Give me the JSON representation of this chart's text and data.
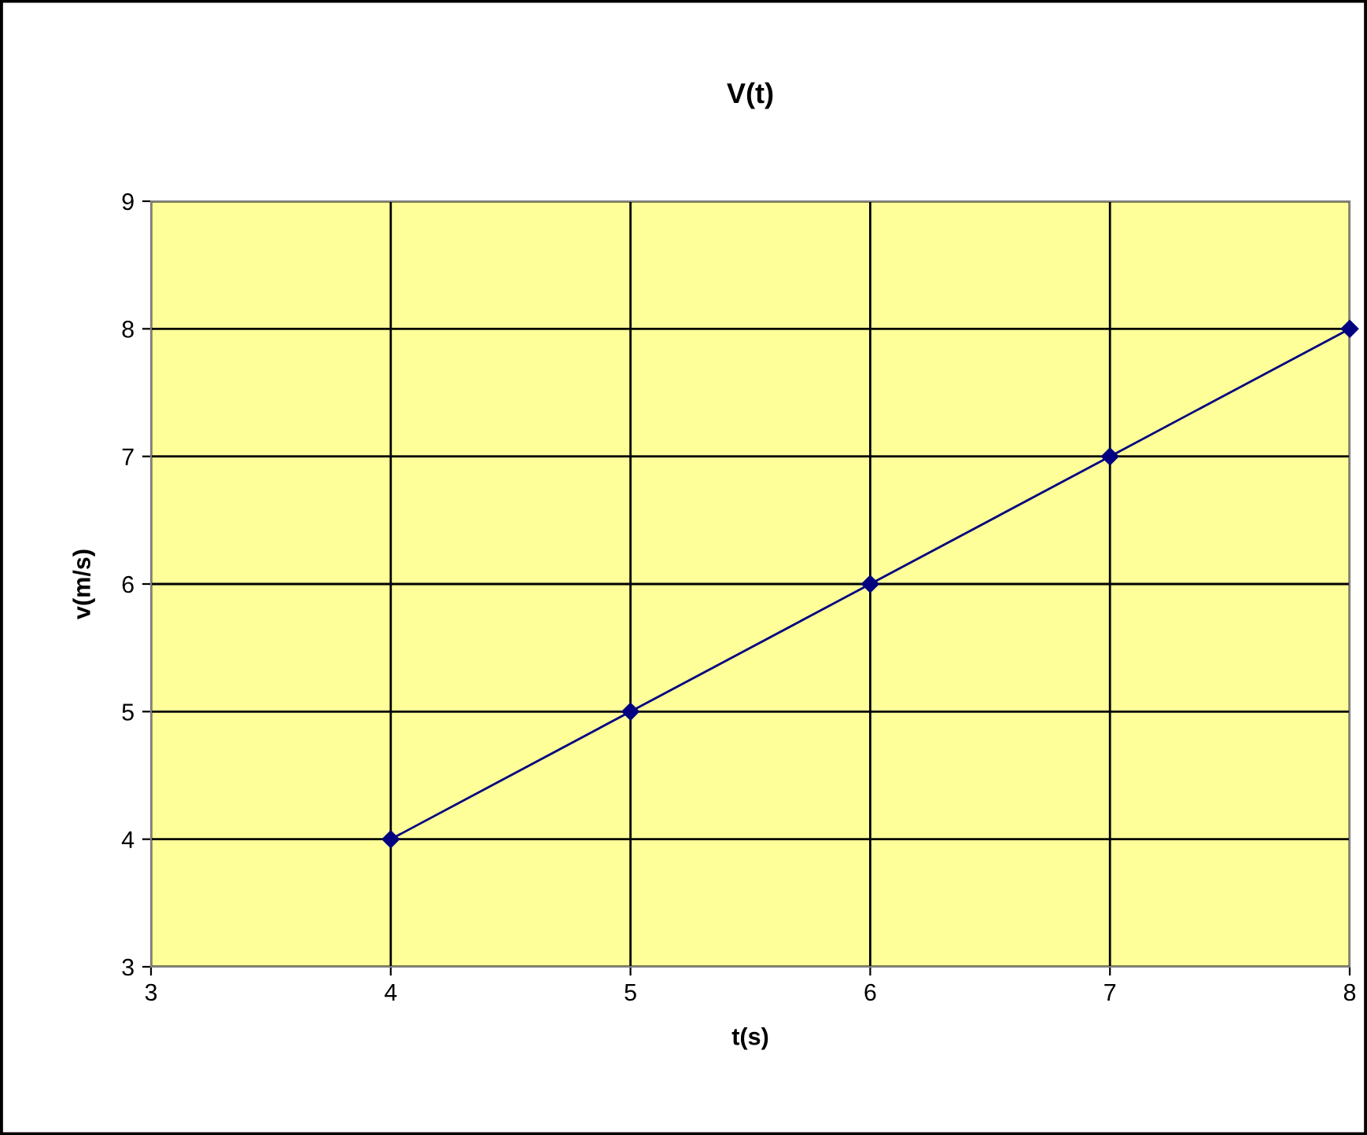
{
  "chart_data": {
    "type": "line",
    "title": "V(t)",
    "xlabel": "t(s)",
    "ylabel": "v(m/s)",
    "x": [
      4,
      5,
      6,
      7,
      8
    ],
    "series": [
      {
        "color": "#000080",
        "values": [
          4,
          5,
          6,
          7,
          8
        ]
      }
    ],
    "xlim": [
      3,
      8
    ],
    "ylim": [
      3,
      9
    ],
    "xticks": [
      3,
      4,
      5,
      6,
      7,
      8
    ],
    "yticks": [
      3,
      4,
      5,
      6,
      7,
      8,
      9
    ],
    "grid": true,
    "marker": "diamond",
    "line_style": "solid",
    "legend": false
  }
}
